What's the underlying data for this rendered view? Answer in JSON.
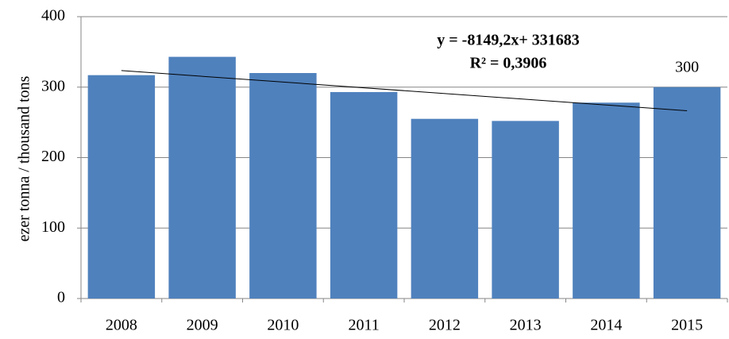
{
  "chart_data": {
    "type": "bar",
    "y_label": "ezer tonna  / thousand tons",
    "categories": [
      "2008",
      "2009",
      "2010",
      "2011",
      "2012",
      "2013",
      "2014",
      "2015"
    ],
    "values": [
      317,
      343,
      320,
      293,
      255,
      252,
      278,
      300
    ],
    "value_labels": [
      null,
      null,
      null,
      null,
      null,
      null,
      null,
      "300"
    ],
    "color": "#4f81bd",
    "ylim": [
      0,
      400
    ],
    "yticks": [
      0,
      100,
      200,
      300,
      400
    ],
    "grid": true,
    "trendline": {
      "equation": "y = -8149,2x+ 331683",
      "r_squared": "R² = 0,3906",
      "start": 323.5,
      "end": 266.5,
      "color": "#000000"
    }
  }
}
